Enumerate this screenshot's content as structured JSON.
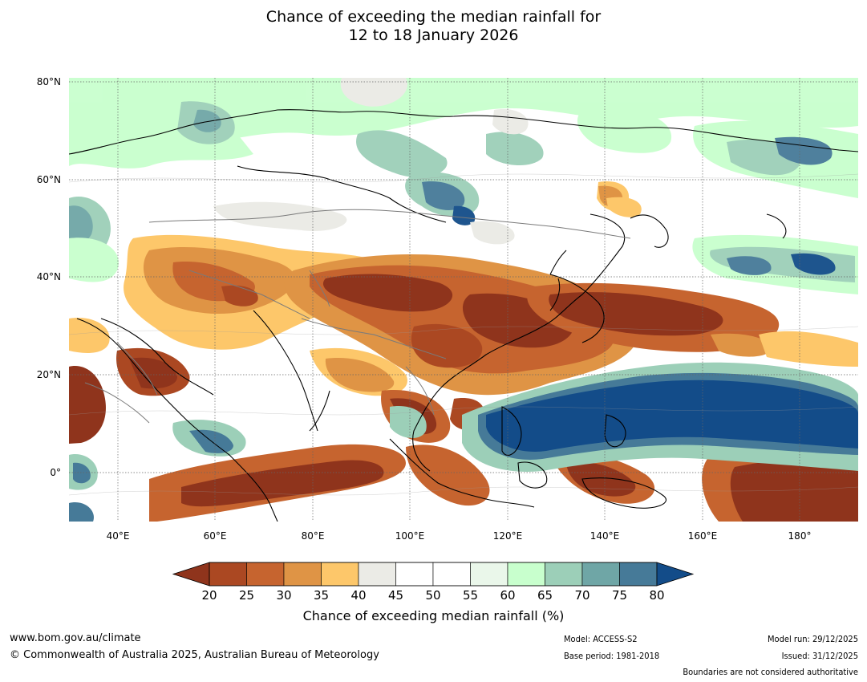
{
  "title": {
    "line1": "Chance of exceeding the median rainfall for",
    "line2": "12 to 18 January 2026"
  },
  "map": {
    "region": "Asia and Western Pacific",
    "extent": {
      "lon": [
        30,
        192
      ],
      "lat": [
        -10,
        80
      ]
    },
    "lat_ticks": [
      "80°N",
      "60°N",
      "40°N",
      "20°N",
      "0°"
    ],
    "lon_ticks": [
      "40°E",
      "60°E",
      "80°E",
      "100°E",
      "120°E",
      "140°E",
      "160°E",
      "180°"
    ]
  },
  "colorbar": {
    "ticks": [
      "20",
      "25",
      "30",
      "35",
      "40",
      "45",
      "50",
      "55",
      "60",
      "65",
      "70",
      "75",
      "80"
    ],
    "colors": [
      "#8f341c",
      "#ab4822",
      "#c6642f",
      "#df9445",
      "#fdc76a",
      "#ebebe6",
      "#ffffff",
      "#ffffff",
      "#eaf7ea",
      "#c8ffcd",
      "#9ccfb8",
      "#6fa6a6",
      "#467a98",
      "#134c89"
    ],
    "label": "Chance of exceeding median rainfall (%)"
  },
  "footer": {
    "website": "www.bom.gov.au/climate",
    "copyright": "© Commonwealth of Australia 2025, Australian Bureau of Meteorology",
    "model": "Model: ACCESS-S2",
    "base_period": "Base period: 1981-2018",
    "model_run": "Model run: 29/12/2025",
    "issued": "Issued: 31/12/2025",
    "disclaimer": "Boundaries are not considered authoritative"
  }
}
